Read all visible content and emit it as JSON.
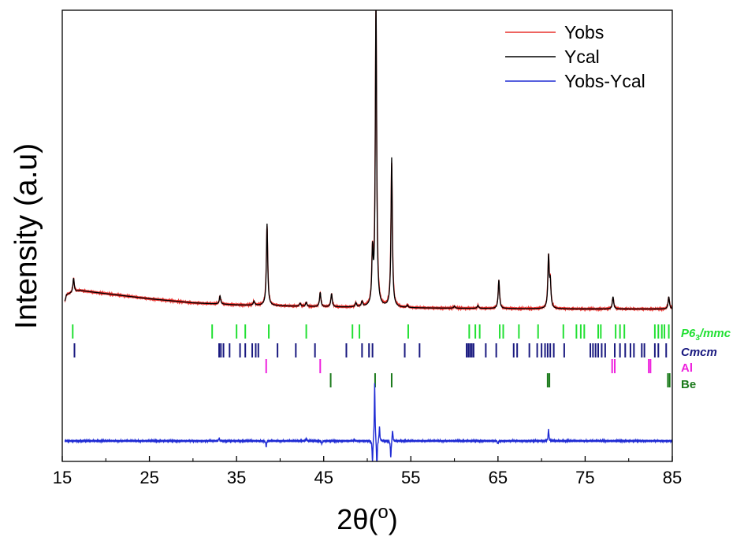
{
  "chart_data": {
    "type": "line",
    "xlabel": "2θ(°)",
    "ylabel": "Intensity (a.u)",
    "xlim": [
      15,
      85
    ],
    "xticks": [
      15,
      25,
      35,
      45,
      55,
      65,
      75,
      85
    ],
    "legend_position": "top-right",
    "series": [
      {
        "name": "Yobs",
        "color": "#e8302c"
      },
      {
        "name": "Ycal",
        "color": "#000000"
      },
      {
        "name": "Yobs-Ycal",
        "color": "#1f2bd4"
      }
    ],
    "pattern": {
      "background": [
        [
          15.5,
          0.08
        ],
        [
          17,
          0.1
        ],
        [
          20,
          0.085
        ],
        [
          25,
          0.06
        ],
        [
          30,
          0.04
        ],
        [
          35,
          0.03
        ],
        [
          45,
          0.02
        ],
        [
          55,
          0.015
        ],
        [
          65,
          0.012
        ],
        [
          75,
          0.01
        ],
        [
          85,
          0.01
        ]
      ],
      "peaks": [
        [
          16.3,
          0.07
        ],
        [
          33.1,
          0.04
        ],
        [
          37.0,
          0.02
        ],
        [
          38.5,
          0.4
        ],
        [
          42.3,
          0.015
        ],
        [
          43.0,
          0.02
        ],
        [
          44.6,
          0.07
        ],
        [
          45.9,
          0.065
        ],
        [
          48.7,
          0.02
        ],
        [
          49.4,
          0.025
        ],
        [
          50.6,
          0.25
        ],
        [
          51.0,
          1.5
        ],
        [
          52.8,
          0.73
        ],
        [
          54.6,
          0.012
        ],
        [
          60.0,
          0.01
        ],
        [
          62.7,
          0.015
        ],
        [
          65.1,
          0.14
        ],
        [
          70.8,
          0.25
        ],
        [
          71.0,
          0.12
        ],
        [
          78.2,
          0.06
        ],
        [
          84.6,
          0.06
        ]
      ],
      "difference_spikes": [
        [
          33.0,
          0.05
        ],
        [
          38.4,
          -0.1
        ],
        [
          43.0,
          0.05
        ],
        [
          44.8,
          -0.05
        ],
        [
          48.5,
          0.03
        ],
        [
          50.6,
          -0.4
        ],
        [
          50.85,
          1.0
        ],
        [
          51.1,
          -0.5
        ],
        [
          51.4,
          0.25
        ],
        [
          52.7,
          -0.3
        ],
        [
          52.9,
          0.2
        ],
        [
          65.0,
          -0.05
        ],
        [
          70.8,
          0.2
        ]
      ]
    },
    "reflection_markers": [
      {
        "phase": "P6₃/mmc",
        "color": "#22e033",
        "positions": [
          16.2,
          32.2,
          35.0,
          36.0,
          38.7,
          43.0,
          48.3,
          49.1,
          54.7,
          61.7,
          62.4,
          62.9,
          65.2,
          65.6,
          67.4,
          69.6,
          72.5,
          74.0,
          74.5,
          74.9,
          76.5,
          76.8,
          78.5,
          79.0,
          79.5,
          83.0,
          83.4,
          83.8,
          84.1,
          84.6
        ]
      },
      {
        "phase": "Cmcm",
        "color": "#1a1a80",
        "positions": [
          16.4,
          33.0,
          33.2,
          33.5,
          34.2,
          35.4,
          36.0,
          36.8,
          37.2,
          37.5,
          39.7,
          41.8,
          44.0,
          47.6,
          49.4,
          50.2,
          50.6,
          54.3,
          56.0,
          61.4,
          61.6,
          61.8,
          62.0,
          62.2,
          63.6,
          64.8,
          66.8,
          67.2,
          68.6,
          69.5,
          70.0,
          70.4,
          70.7,
          71.0,
          71.4,
          72.6,
          75.6,
          75.9,
          76.2,
          76.5,
          76.9,
          77.3,
          78.4,
          79.0,
          79.6,
          80.2,
          80.6,
          81.5,
          81.8,
          83.0,
          83.4,
          84.3
        ]
      },
      {
        "phase": "Al",
        "color": "#ee22dd",
        "positions": [
          38.4,
          44.6,
          78.1,
          78.4,
          82.3,
          82.5
        ]
      },
      {
        "phase": "Be",
        "color": "#1b7a1b",
        "positions": [
          45.8,
          50.9,
          52.8,
          70.7,
          70.9,
          84.5,
          84.7
        ]
      }
    ]
  }
}
